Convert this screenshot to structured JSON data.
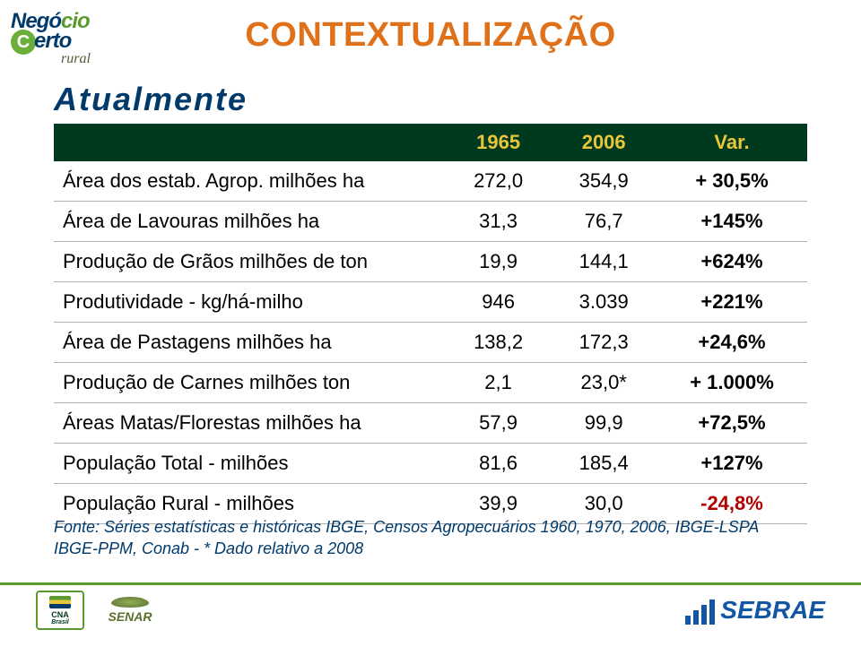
{
  "title": "CONTEXTUALIZAÇÃO",
  "subtitle": "Atualmente",
  "table": {
    "headers": {
      "blank": "",
      "col1": "1965",
      "col2": "2006",
      "col3": "Var."
    },
    "rows": [
      {
        "label": "Área dos estab. Agrop. milhões ha",
        "c1": "272,0",
        "c2": "354,9",
        "var": "+ 30,5%",
        "neg": false
      },
      {
        "label": "Área de Lavouras milhões ha",
        "c1": "31,3",
        "c2": "76,7",
        "var": "+145%",
        "neg": false
      },
      {
        "label": "Produção de Grãos milhões de ton",
        "c1": "19,9",
        "c2": "144,1",
        "var": "+624%",
        "neg": false
      },
      {
        "label": "Produtividade - kg/há-milho",
        "c1": "946",
        "c2": "3.039",
        "var": "+221%",
        "neg": false
      },
      {
        "label": "Área de Pastagens milhões ha",
        "c1": "138,2",
        "c2": "172,3",
        "var": "+24,6%",
        "neg": false
      },
      {
        "label": "Produção de Carnes milhões ton",
        "c1": "2,1",
        "c2": "23,0*",
        "var": "+ 1.000%",
        "neg": false
      },
      {
        "label": "Áreas Matas/Florestas milhões ha",
        "c1": "57,9",
        "c2": "99,9",
        "var": "+72,5%",
        "neg": false
      },
      {
        "label": "População Total - milhões",
        "c1": "81,6",
        "c2": "185,4",
        "var": "+127%",
        "neg": false
      },
      {
        "label": "População Rural - milhões",
        "c1": "39,9",
        "c2": "30,0",
        "var": "-24,8%",
        "neg": true
      }
    ]
  },
  "source": "Fonte: Séries estatísticas e históricas IBGE, Censos Agropecuários 1960, 1970, 2006, IBGE-LSPA IBGE-PPM, Conab - * Dado relativo a 2008",
  "logos": {
    "top_line1a": "Negó",
    "top_line1b": "cio",
    "top_line2a": "C",
    "top_line2b": "erto",
    "top_line3": "rural",
    "cna": "CNA",
    "cna_sub": "Brasil",
    "senar": "SENAR",
    "sebrae": "SEBRAE"
  },
  "colors": {
    "title": "#e0711b",
    "subtitle": "#003a6b",
    "thead_bg": "#003a1e",
    "thead_year": "#e8c63a",
    "row_border": "#b0b0b0",
    "var_neg": "#b00000",
    "footer_line": "#5a9a2f",
    "sebrae": "#1356a4"
  }
}
